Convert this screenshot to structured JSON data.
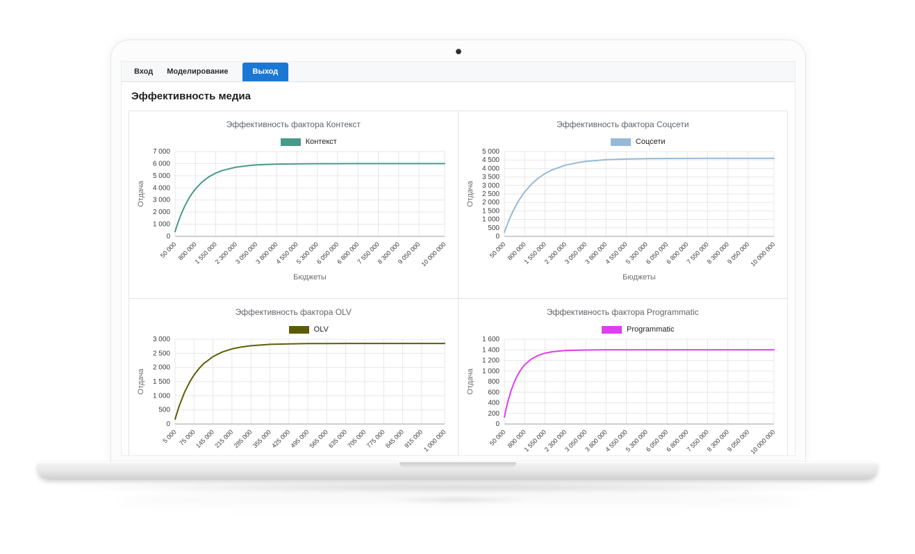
{
  "theme": {
    "accent": "#1a78d4",
    "grid_color": "#e7e7e7",
    "baseline_color": "#9aa0a6"
  },
  "tabs": [
    {
      "label": "Вход",
      "active": false
    },
    {
      "label": "Моделирование",
      "active": false
    },
    {
      "label": "Выход",
      "active": true
    }
  ],
  "page_title": "Эффективность медиа",
  "chart_data": [
    {
      "type": "line",
      "title": "Эффективность фактора Контекст",
      "legend": "Контекст",
      "color": "#479a87",
      "ylabel": "Отдача",
      "xlabel": "Бюджеты",
      "ylim": [
        0,
        7000
      ],
      "xlim": [
        50000,
        10000000
      ],
      "y_ticks": [
        "0",
        "1 000",
        "2 000",
        "3 000",
        "4 000",
        "5 000",
        "6 000",
        "7 000"
      ],
      "x_ticks": [
        "50 000",
        "800 000",
        "1 550 000",
        "2 300 000",
        "3 050 000",
        "3 800 000",
        "4 550 000",
        "5 300 000",
        "6 050 000",
        "6 800 000",
        "7 550 000",
        "8 300 000",
        "9 050 000",
        "10 000 000"
      ],
      "points": [
        [
          50000,
          382
        ],
        [
          100000,
          740
        ],
        [
          200000,
          1387
        ],
        [
          300000,
          1957
        ],
        [
          400000,
          2455
        ],
        [
          500000,
          2892
        ],
        [
          600000,
          3274
        ],
        [
          700000,
          3611
        ],
        [
          800000,
          3907
        ],
        [
          1050000,
          4493
        ],
        [
          1300000,
          4916
        ],
        [
          1550000,
          5219
        ],
        [
          1800000,
          5438
        ],
        [
          2300000,
          5709
        ],
        [
          2800000,
          5849
        ],
        [
          3050000,
          5891
        ],
        [
          3800000,
          5960
        ],
        [
          4550000,
          5985
        ],
        [
          5300000,
          5994
        ],
        [
          6050000,
          5998
        ],
        [
          6800000,
          5999
        ],
        [
          7550000,
          6000
        ],
        [
          8300000,
          6000
        ],
        [
          9050000,
          6000
        ],
        [
          10000000,
          6000
        ]
      ]
    },
    {
      "type": "line",
      "title": "Эффективность фактора Соцсети",
      "legend": "Соцсети",
      "color": "#97b9d6",
      "ylabel": "Отдача",
      "xlabel": "Бюджеты",
      "ylim": [
        0,
        5000
      ],
      "xlim": [
        50000,
        10000000
      ],
      "y_ticks": [
        "0",
        "500",
        "1 000",
        "1 500",
        "2 000",
        "2 500",
        "3 000",
        "3 500",
        "4 000",
        "4 500",
        "5 000"
      ],
      "x_ticks": [
        "50 000",
        "800 000",
        "1 550 000",
        "2 300 000",
        "3 050 000",
        "3 800 000",
        "4 550 000",
        "5 300 000",
        "6 050 000",
        "6 800 000",
        "7 550 000",
        "8 300 000",
        "9 050 000",
        "10 000 000"
      ],
      "points": [
        [
          50000,
          236
        ],
        [
          100000,
          460
        ],
        [
          200000,
          873
        ],
        [
          300000,
          1246
        ],
        [
          400000,
          1581
        ],
        [
          500000,
          1882
        ],
        [
          600000,
          2154
        ],
        [
          700000,
          2398
        ],
        [
          800000,
          2619
        ],
        [
          1050000,
          3076
        ],
        [
          1300000,
          3429
        ],
        [
          1550000,
          3700
        ],
        [
          1800000,
          3909
        ],
        [
          2300000,
          4192
        ],
        [
          2800000,
          4359
        ],
        [
          3050000,
          4415
        ],
        [
          3800000,
          4516
        ],
        [
          4550000,
          4562
        ],
        [
          5300000,
          4583
        ],
        [
          6050000,
          4592
        ],
        [
          6800000,
          4596
        ],
        [
          7550000,
          4598
        ],
        [
          8300000,
          4599
        ],
        [
          9050000,
          4600
        ],
        [
          10000000,
          4600
        ]
      ]
    },
    {
      "type": "line",
      "title": "Эффективность фактора OLV",
      "legend": "OLV",
      "color": "#5c5c08",
      "ylabel": "Отдача",
      "ylim": [
        0,
        3000
      ],
      "xlim": [
        5000,
        1000000
      ],
      "y_ticks": [
        "0",
        "500",
        "1 000",
        "1 500",
        "2 000",
        "2 500",
        "3 000"
      ],
      "x_ticks": [
        "5 000",
        "75 000",
        "145 000",
        "215 000",
        "285 000",
        "355 000",
        "425 000",
        "495 000",
        "565 000",
        "635 000",
        "705 000",
        "775 000",
        "845 000",
        "915 000",
        "1 000 000"
      ],
      "points": [
        [
          5000,
          173
        ],
        [
          20000,
          630
        ],
        [
          40000,
          1121
        ],
        [
          60000,
          1504
        ],
        [
          75000,
          1734
        ],
        [
          95000,
          1981
        ],
        [
          110000,
          2129
        ],
        [
          145000,
          2385
        ],
        [
          180000,
          2550
        ],
        [
          215000,
          2657
        ],
        [
          250000,
          2725
        ],
        [
          285000,
          2770
        ],
        [
          355000,
          2817
        ],
        [
          425000,
          2836
        ],
        [
          495000,
          2844
        ],
        [
          565000,
          2848
        ],
        [
          635000,
          2849
        ],
        [
          705000,
          2850
        ],
        [
          775000,
          2850
        ],
        [
          845000,
          2850
        ],
        [
          915000,
          2850
        ],
        [
          1000000,
          2850
        ]
      ]
    },
    {
      "type": "line",
      "title": "Эффективность фактора Programmatic",
      "legend": "Programmatic",
      "color": "#de3df0",
      "ylabel": "Отдача",
      "ylim": [
        0,
        1600
      ],
      "xlim": [
        50000,
        10000000
      ],
      "y_ticks": [
        "0",
        "200",
        "400",
        "600",
        "800",
        "1 000",
        "1 200",
        "1 400",
        "1 600"
      ],
      "x_ticks": [
        "50 000",
        "800 000",
        "1 550 000",
        "2 300 000",
        "3 050 000",
        "3 800 000",
        "4 550 000",
        "5 300 000",
        "6 050 000",
        "6 800 000",
        "7 550 000",
        "8 300 000",
        "9 050 000",
        "10 000 000"
      ],
      "points": [
        [
          50000,
          133
        ],
        [
          100000,
          254
        ],
        [
          200000,
          462
        ],
        [
          300000,
          632
        ],
        [
          400000,
          771
        ],
        [
          500000,
          885
        ],
        [
          600000,
          978
        ],
        [
          700000,
          1055
        ],
        [
          800000,
          1117
        ],
        [
          1050000,
          1228
        ],
        [
          1300000,
          1296
        ],
        [
          1550000,
          1337
        ],
        [
          1800000,
          1362
        ],
        [
          2300000,
          1386
        ],
        [
          3050000,
          1397
        ],
        [
          3800000,
          1399
        ],
        [
          4550000,
          1400
        ],
        [
          5300000,
          1400
        ],
        [
          6050000,
          1400
        ],
        [
          6800000,
          1400
        ],
        [
          7550000,
          1400
        ],
        [
          8300000,
          1400
        ],
        [
          9050000,
          1400
        ],
        [
          10000000,
          1400
        ]
      ]
    }
  ]
}
